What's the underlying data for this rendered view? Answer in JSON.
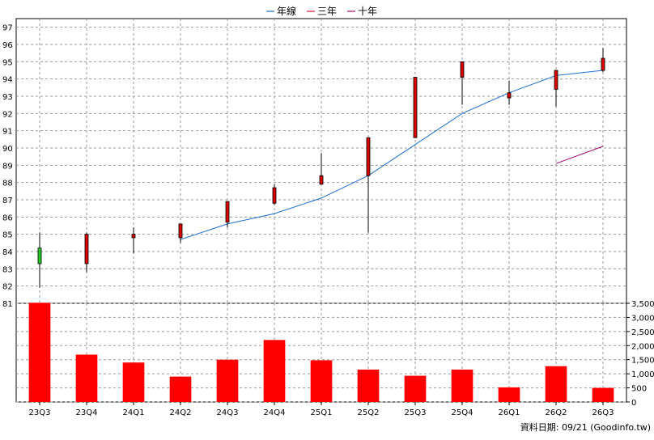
{
  "chart_data": {
    "type": "candlestick",
    "legend": {
      "placement": "top-center",
      "items": [
        {
          "label": "年線",
          "color": "#1e6fd0"
        },
        {
          "label": "三年",
          "color": "#d81b3a"
        },
        {
          "label": "十年",
          "color": "#a00a6a"
        }
      ]
    },
    "categories": [
      "23Q3",
      "23Q4",
      "24Q1",
      "24Q2",
      "24Q3",
      "24Q4",
      "25Q1",
      "25Q2",
      "25Q3",
      "25Q4",
      "26Q1",
      "26Q2",
      "26Q3"
    ],
    "price": {
      "y_ticks": [
        81,
        82,
        83,
        84,
        85,
        86,
        87,
        88,
        89,
        90,
        91,
        92,
        93,
        94,
        95,
        96,
        97
      ],
      "ylim": [
        81,
        97.5
      ],
      "grid": true,
      "candles": [
        {
          "open": 83.3,
          "high": 85.1,
          "low": 81.9,
          "close": 84.2,
          "color": "#22cc22"
        },
        {
          "open": 85.0,
          "high": 85.1,
          "low": 82.8,
          "close": 83.3,
          "color": "#dd0000"
        },
        {
          "open": 84.8,
          "high": 85.4,
          "low": 83.9,
          "close": 85.0,
          "color": "#dd0000"
        },
        {
          "open": 85.6,
          "high": 85.6,
          "low": 84.5,
          "close": 84.8,
          "color": "#dd0000"
        },
        {
          "open": 86.9,
          "high": 86.9,
          "low": 85.4,
          "close": 85.7,
          "color": "#dd0000"
        },
        {
          "open": 87.7,
          "high": 87.9,
          "low": 86.7,
          "close": 86.8,
          "color": "#dd0000"
        },
        {
          "open": 88.4,
          "high": 89.7,
          "low": 87.9,
          "close": 87.9,
          "color": "#dd0000"
        },
        {
          "open": 90.6,
          "high": 90.6,
          "low": 85.1,
          "close": 88.4,
          "color": "#dd0000"
        },
        {
          "open": 94.1,
          "high": 94.1,
          "low": 90.6,
          "close": 90.6,
          "color": "#dd0000"
        },
        {
          "open": 95.0,
          "high": 95.0,
          "low": 92.5,
          "close": 94.1,
          "color": "#dd0000"
        },
        {
          "open": 93.2,
          "high": 93.9,
          "low": 92.5,
          "close": 92.9,
          "color": "#dd0000"
        },
        {
          "open": 94.5,
          "high": 94.5,
          "low": 92.4,
          "close": 93.4,
          "color": "#dd0000"
        },
        {
          "open": 95.2,
          "high": 95.8,
          "low": 94.4,
          "close": 94.5,
          "color": "#dd0000"
        }
      ],
      "series": [
        {
          "name": "年線",
          "color": "#1e6fd0",
          "values": [
            null,
            null,
            null,
            84.7,
            85.6,
            86.2,
            87.1,
            88.4,
            90.2,
            92.0,
            93.2,
            94.2,
            94.5
          ]
        },
        {
          "name": "三年",
          "color": "#d81b3a",
          "values": [
            null,
            null,
            null,
            null,
            null,
            null,
            null,
            null,
            null,
            null,
            null,
            null,
            null
          ]
        },
        {
          "name": "十年",
          "color": "#a00a6a",
          "values": [
            null,
            null,
            null,
            null,
            null,
            null,
            null,
            null,
            null,
            null,
            null,
            89.1,
            90.1
          ]
        }
      ]
    },
    "volume": {
      "y_ticks": [
        0,
        500,
        1000,
        1500,
        2000,
        2500,
        3000,
        3500
      ],
      "y_tick_labels": [
        "0",
        "500",
        "1,000",
        "1,500",
        "2,000",
        "2,500",
        "3,000",
        "3,500"
      ],
      "ylim": [
        0,
        3500
      ],
      "bar_color": "#ff0000",
      "values": [
        3520,
        1680,
        1400,
        900,
        1500,
        2200,
        1480,
        1150,
        930,
        1150,
        520,
        1270,
        500
      ]
    }
  },
  "footer": {
    "source": "資料日期: 09/21  (Goodinfo.tw)"
  }
}
